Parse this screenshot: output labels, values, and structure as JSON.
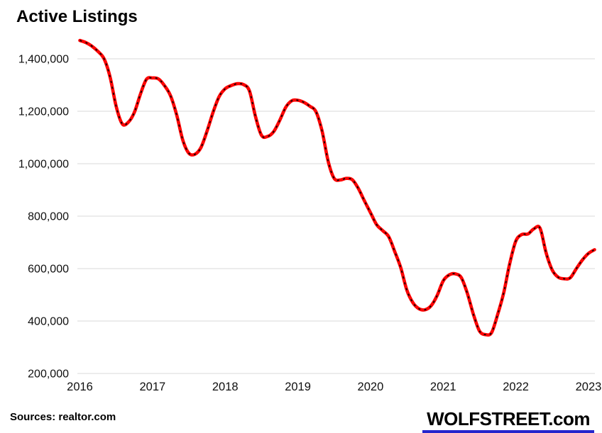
{
  "title": "Active Listings",
  "footer": {
    "sources": "Sources: realtor.com",
    "brand": "WOLFSTREET.com"
  },
  "colors": {
    "background": "#FFFFFF",
    "line_red": "#FE0000",
    "dash_overlay": "#000000",
    "gridline": "#D9D9D9",
    "axis_text": "#101010",
    "title_text": "#000000",
    "brand_underline": "#2525CD"
  },
  "chart_data": {
    "type": "line",
    "title": "Active Listings",
    "xlabel": "",
    "ylabel": "",
    "ylim": [
      200000,
      1500000
    ],
    "y_ticks": [
      200000,
      400000,
      600000,
      800000,
      1000000,
      1200000,
      1400000
    ],
    "y_tick_labels": [
      "200,000",
      "400,000",
      "600,000",
      "800,000",
      "1,000,000",
      "1,200,000",
      "1,400,000"
    ],
    "x_tick_labels": [
      "2016",
      "2017",
      "2018",
      "2019",
      "2020",
      "2021",
      "2022",
      "2023"
    ],
    "grid": "horizontal-only",
    "legend_position": "none",
    "line_style": "thick red with short black dashes along path",
    "series": [
      {
        "name": "Active listings",
        "x": [
          "2016-07",
          "2016-08",
          "2016-09",
          "2016-10",
          "2016-11",
          "2016-12",
          "2017-01",
          "2017-02",
          "2017-03",
          "2017-04",
          "2017-05",
          "2017-06",
          "2017-07",
          "2017-08",
          "2017-09",
          "2017-10",
          "2017-11",
          "2017-12",
          "2018-01",
          "2018-02",
          "2018-03",
          "2018-04",
          "2018-05",
          "2018-06",
          "2018-07",
          "2018-08",
          "2018-09",
          "2018-10",
          "2018-11",
          "2018-12",
          "2019-01",
          "2019-02",
          "2019-03",
          "2019-04",
          "2019-05",
          "2019-06",
          "2019-07",
          "2019-08",
          "2019-09",
          "2019-10",
          "2019-11",
          "2019-12",
          "2020-01",
          "2020-02",
          "2020-03",
          "2020-04",
          "2020-05",
          "2020-06",
          "2020-07",
          "2020-08",
          "2020-09",
          "2020-10",
          "2020-11",
          "2020-12",
          "2021-01",
          "2021-02",
          "2021-03",
          "2021-04",
          "2021-05",
          "2021-06",
          "2021-07",
          "2021-08",
          "2021-09",
          "2021-10",
          "2021-11",
          "2021-12",
          "2022-01",
          "2022-02",
          "2022-03",
          "2022-04",
          "2022-05",
          "2022-06",
          "2022-07",
          "2022-08",
          "2022-09",
          "2022-10",
          "2022-11",
          "2022-12",
          "2023-01",
          "2023-02",
          "2023-03",
          "2023-04",
          "2023-05",
          "2023-06",
          "2023-07",
          "2023-08"
        ],
        "values": [
          1470000,
          1462000,
          1448000,
          1428000,
          1400000,
          1330000,
          1218000,
          1152000,
          1158000,
          1196000,
          1265000,
          1322000,
          1327000,
          1323000,
          1297000,
          1258000,
          1185000,
          1090000,
          1040000,
          1036000,
          1062000,
          1124000,
          1196000,
          1256000,
          1286000,
          1298000,
          1305000,
          1302000,
          1278000,
          1180000,
          1108000,
          1104000,
          1122000,
          1165000,
          1215000,
          1240000,
          1242000,
          1234000,
          1219000,
          1198000,
          1125000,
          1010000,
          944000,
          938000,
          944000,
          939000,
          905000,
          858000,
          813000,
          768000,
          745000,
          722000,
          665000,
          603000,
          518000,
          470000,
          447000,
          443000,
          458000,
          497000,
          553000,
          576000,
          580000,
          565000,
          505000,
          425000,
          362000,
          348000,
          356000,
          425000,
          508000,
          620000,
          705000,
          730000,
          732000,
          752000,
          754000,
          660000,
          595000,
          567000,
          561000,
          565000,
          600000,
          633000,
          658000,
          672000
        ]
      }
    ]
  }
}
